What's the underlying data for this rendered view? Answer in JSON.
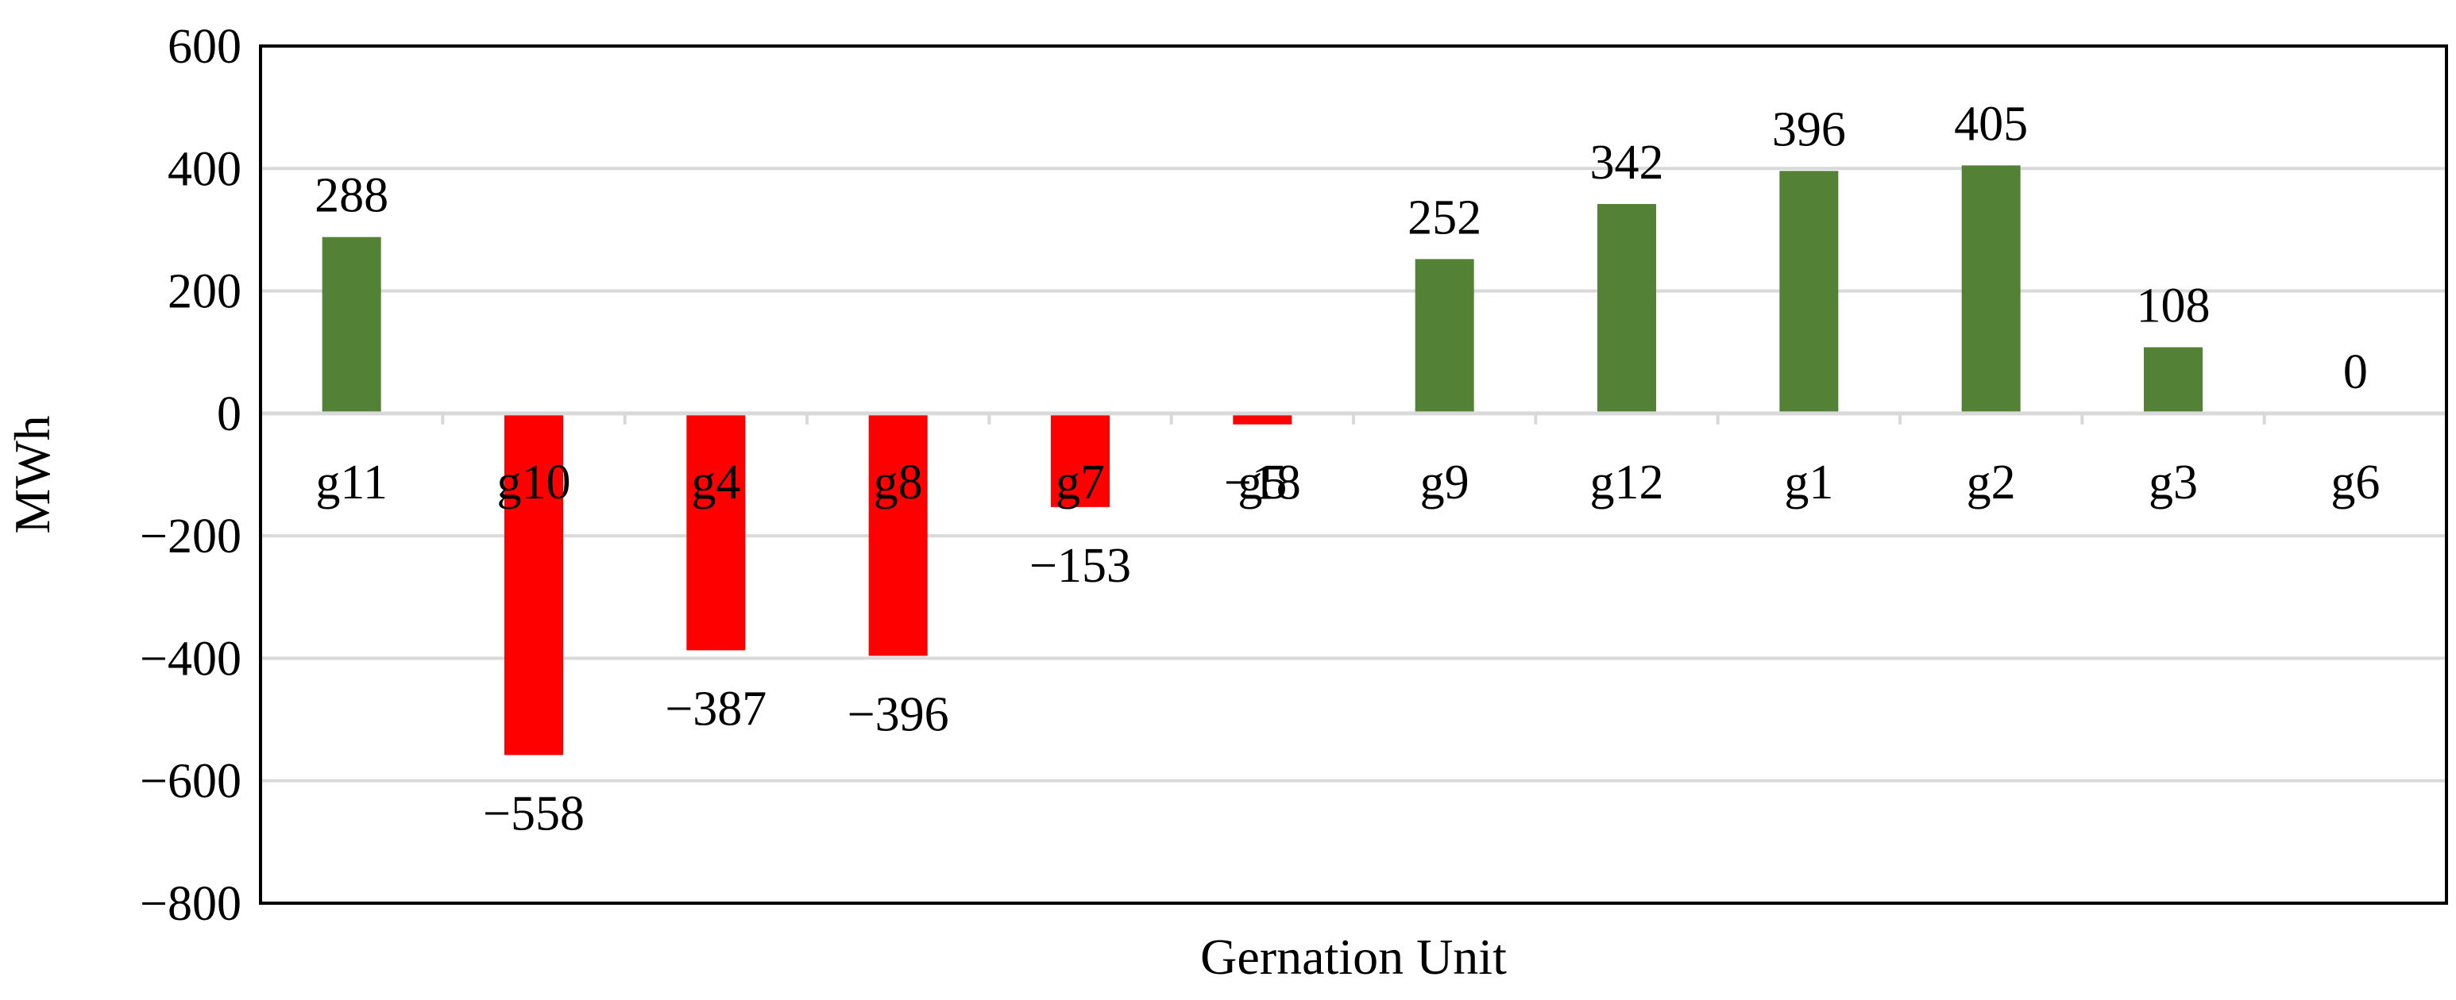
{
  "chart_data": {
    "type": "bar",
    "title": "",
    "xlabel": "Gernation Unit",
    "ylabel": "MWh",
    "ylim": [
      -800,
      600
    ],
    "yticks": [
      600,
      400,
      200,
      0,
      -200,
      -400,
      -600,
      -800
    ],
    "ytick_labels": [
      "600",
      "400",
      "200",
      "0",
      "−200",
      "−400",
      "−600",
      "−800"
    ],
    "categories": [
      "g11",
      "g10",
      "g4",
      "g8",
      "g7",
      "g5",
      "g9",
      "g12",
      "g1",
      "g2",
      "g3",
      "g6"
    ],
    "values": [
      288,
      -558,
      -387,
      -396,
      -153,
      -18,
      252,
      342,
      396,
      405,
      108,
      0
    ],
    "value_labels": [
      "288",
      "−558",
      "−387",
      "−396",
      "−153",
      "−18",
      "252",
      "342",
      "396",
      "405",
      "108",
      "0"
    ],
    "grid": true,
    "legend": "none",
    "colors": {
      "positive": "#538135",
      "negative": "#ff0000",
      "grid": "#d9d9d9",
      "axis": "#000000"
    }
  }
}
